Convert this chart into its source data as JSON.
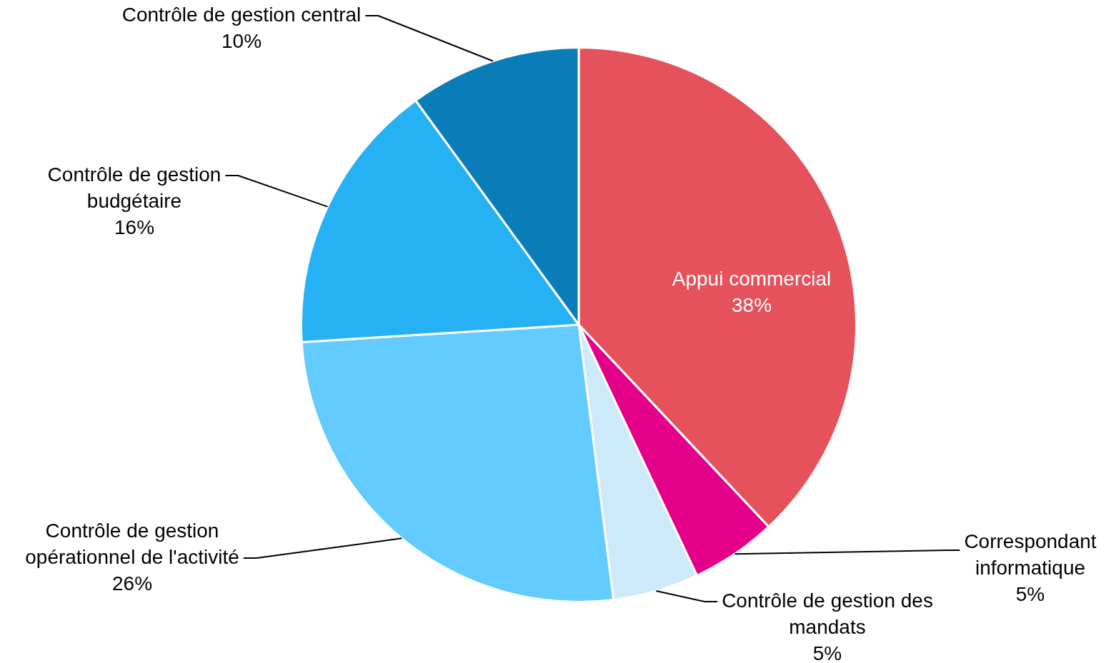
{
  "chart_data": {
    "type": "pie",
    "categories": [
      "Appui commercial",
      "Correspondant informatique",
      "Contrôle de gestion des mandats",
      "Contrôle de gestion opérationnel de l'activité",
      "Contrôle de gestion budgétaire",
      "Contrôle de gestion central"
    ],
    "values": [
      38,
      5,
      5,
      26,
      16,
      10
    ],
    "colors": [
      "#e5525b",
      "#e5008a",
      "#cdeafb",
      "#63cbff",
      "#27b1f5",
      "#0a7db8"
    ],
    "value_labels": [
      "38%",
      "5%",
      "5%",
      "26%",
      "16%",
      "10%"
    ],
    "legend": false
  }
}
